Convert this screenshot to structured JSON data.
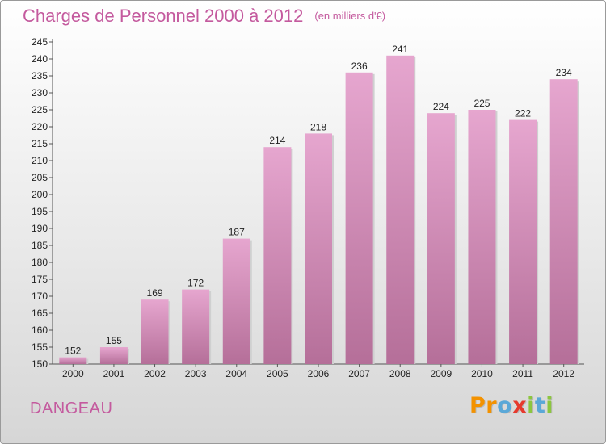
{
  "title": "Charges de Personnel 2000 à 2012",
  "subtitle": "(en milliers d'€)",
  "place": "DANGEAU",
  "logo": {
    "text": "Proxiti",
    "letters": [
      "P",
      "r",
      "o",
      "x",
      "i",
      "t",
      "i"
    ],
    "colors": [
      "#f39200",
      "#f39200",
      "#5aa8d8",
      "#e63a2e",
      "#8cc63f",
      "#5aa8d8",
      "#8cc63f"
    ]
  },
  "colors": {
    "bar_top": "#e6a6cf",
    "bar_bottom": "#b56f99",
    "bar_edge": "#cfd0d0",
    "title": "#c45a9e"
  },
  "chart_data": {
    "type": "bar",
    "title": "Charges de Personnel 2000 à 2012",
    "subtitle": "(en milliers d'€)",
    "categories": [
      "2000",
      "2001",
      "2002",
      "2003",
      "2004",
      "2005",
      "2006",
      "2007",
      "2008",
      "2009",
      "2010",
      "2011",
      "2012"
    ],
    "values": [
      152,
      155,
      169,
      172,
      187,
      214,
      218,
      236,
      241,
      224,
      225,
      222,
      234
    ],
    "ylim": [
      150,
      245
    ],
    "yticks": [
      150,
      155,
      160,
      165,
      170,
      175,
      180,
      185,
      190,
      195,
      200,
      205,
      210,
      215,
      220,
      225,
      230,
      235,
      240,
      245
    ],
    "grid": false,
    "xlabel": "",
    "ylabel": ""
  }
}
